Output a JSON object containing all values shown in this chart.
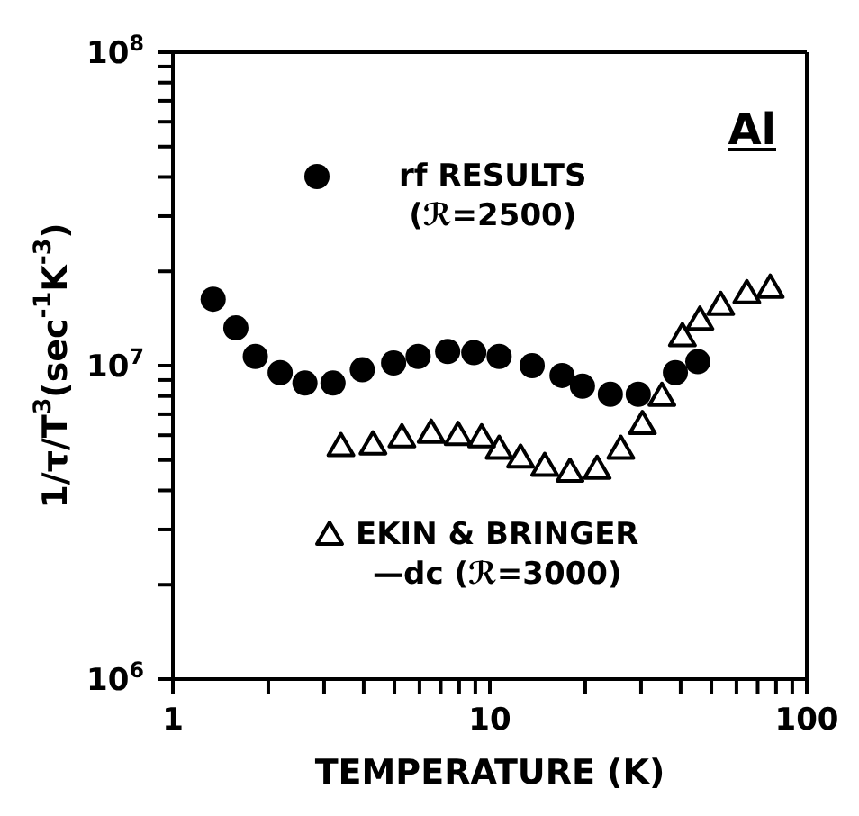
{
  "chart_data": {
    "type": "scatter",
    "xlabel": "TEMPERATURE (K)",
    "ylabel": "1/τ/T$^{3}$(sec$^{-1}$K$^{-3}$)",
    "log": "xy",
    "legend": "center",
    "annotations": [
      "Al"
    ],
    "xlim": [
      1,
      100
    ],
    "xticks": [
      1,
      {
        "value": 2,
        "label": null
      },
      {
        "value": 3,
        "label": null
      },
      {
        "value": 4,
        "label": null
      },
      {
        "value": 5,
        "label": null
      },
      {
        "value": 6,
        "label": null
      },
      {
        "value": 7,
        "label": null
      },
      {
        "value": 8,
        "label": null
      },
      {
        "value": 9,
        "label": null
      },
      10,
      {
        "value": 20,
        "label": null
      },
      {
        "value": 30,
        "label": null
      },
      {
        "value": 40,
        "label": null
      },
      {
        "value": 50,
        "label": null
      },
      {
        "value": 60,
        "label": null
      },
      {
        "value": 70,
        "label": null
      },
      {
        "value": 80,
        "label": null
      },
      {
        "value": 90,
        "label": null
      },
      100
    ],
    "ylim": [
      1000000,
      100000000
    ],
    "yticks": [
      {
        "value": 1000000,
        "label": "10$^{6}$"
      },
      {
        "value": 2000000,
        "label": null
      },
      {
        "value": 3000000,
        "label": null
      },
      {
        "value": 4000000,
        "label": null
      },
      {
        "value": 5000000,
        "label": null
      },
      {
        "value": 6000000,
        "label": null
      },
      {
        "value": 7000000,
        "label": null
      },
      {
        "value": 8000000,
        "label": null
      },
      {
        "value": 9000000,
        "label": null
      },
      {
        "value": 10000000,
        "label": "10$^{7}$"
      },
      {
        "value": 20000000,
        "label": null
      },
      {
        "value": 30000000,
        "label": null
      },
      {
        "value": 40000000,
        "label": null
      },
      {
        "value": 50000000,
        "label": null
      },
      {
        "value": 60000000,
        "label": null
      },
      {
        "value": 70000000,
        "label": null
      },
      {
        "value": 80000000,
        "label": null
      },
      {
        "value": 90000000,
        "label": null
      },
      {
        "value": 100000000,
        "label": "10$^{8}$"
      }
    ],
    "series": [
      {
        "name": "rf RESULTS (ℛ=2500)",
        "color": "#000000",
        "marker": "circle",
        "x": [
          1.34,
          1.58,
          1.82,
          2.18,
          2.61,
          3.2,
          3.96,
          4.97,
          5.94,
          7.36,
          8.9,
          10.7,
          13.6,
          16.9,
          19.6,
          24,
          29.4,
          38.5,
          45.3
        ],
        "values": [
          16300000,
          13200000,
          10700000,
          9500000,
          8800000,
          8800000,
          9700000,
          10200000,
          10700000,
          11100000,
          11000000,
          10700000,
          10000000,
          9300000,
          8600000,
          8100000,
          8100000,
          9500000,
          10300000
        ]
      },
      {
        "name": "EKIN & BRINGER —dc (ℛ=3000)",
        "color": "#000000",
        "marker": "triangle",
        "x": [
          3.39,
          4.28,
          5.28,
          6.53,
          7.94,
          9.42,
          10.7,
          12.5,
          14.9,
          17.9,
          21.8,
          25.9,
          30.3,
          34.9,
          40.5,
          46,
          53.5,
          64.7,
          76.7
        ],
        "values": [
          5530000,
          5600000,
          5900000,
          6100000,
          6000000,
          5900000,
          5420000,
          5080000,
          4780000,
          4580000,
          4680000,
          5420000,
          6500000,
          8000000,
          12400000,
          14000000,
          15600000,
          17000000,
          17700000
        ]
      }
    ]
  }
}
